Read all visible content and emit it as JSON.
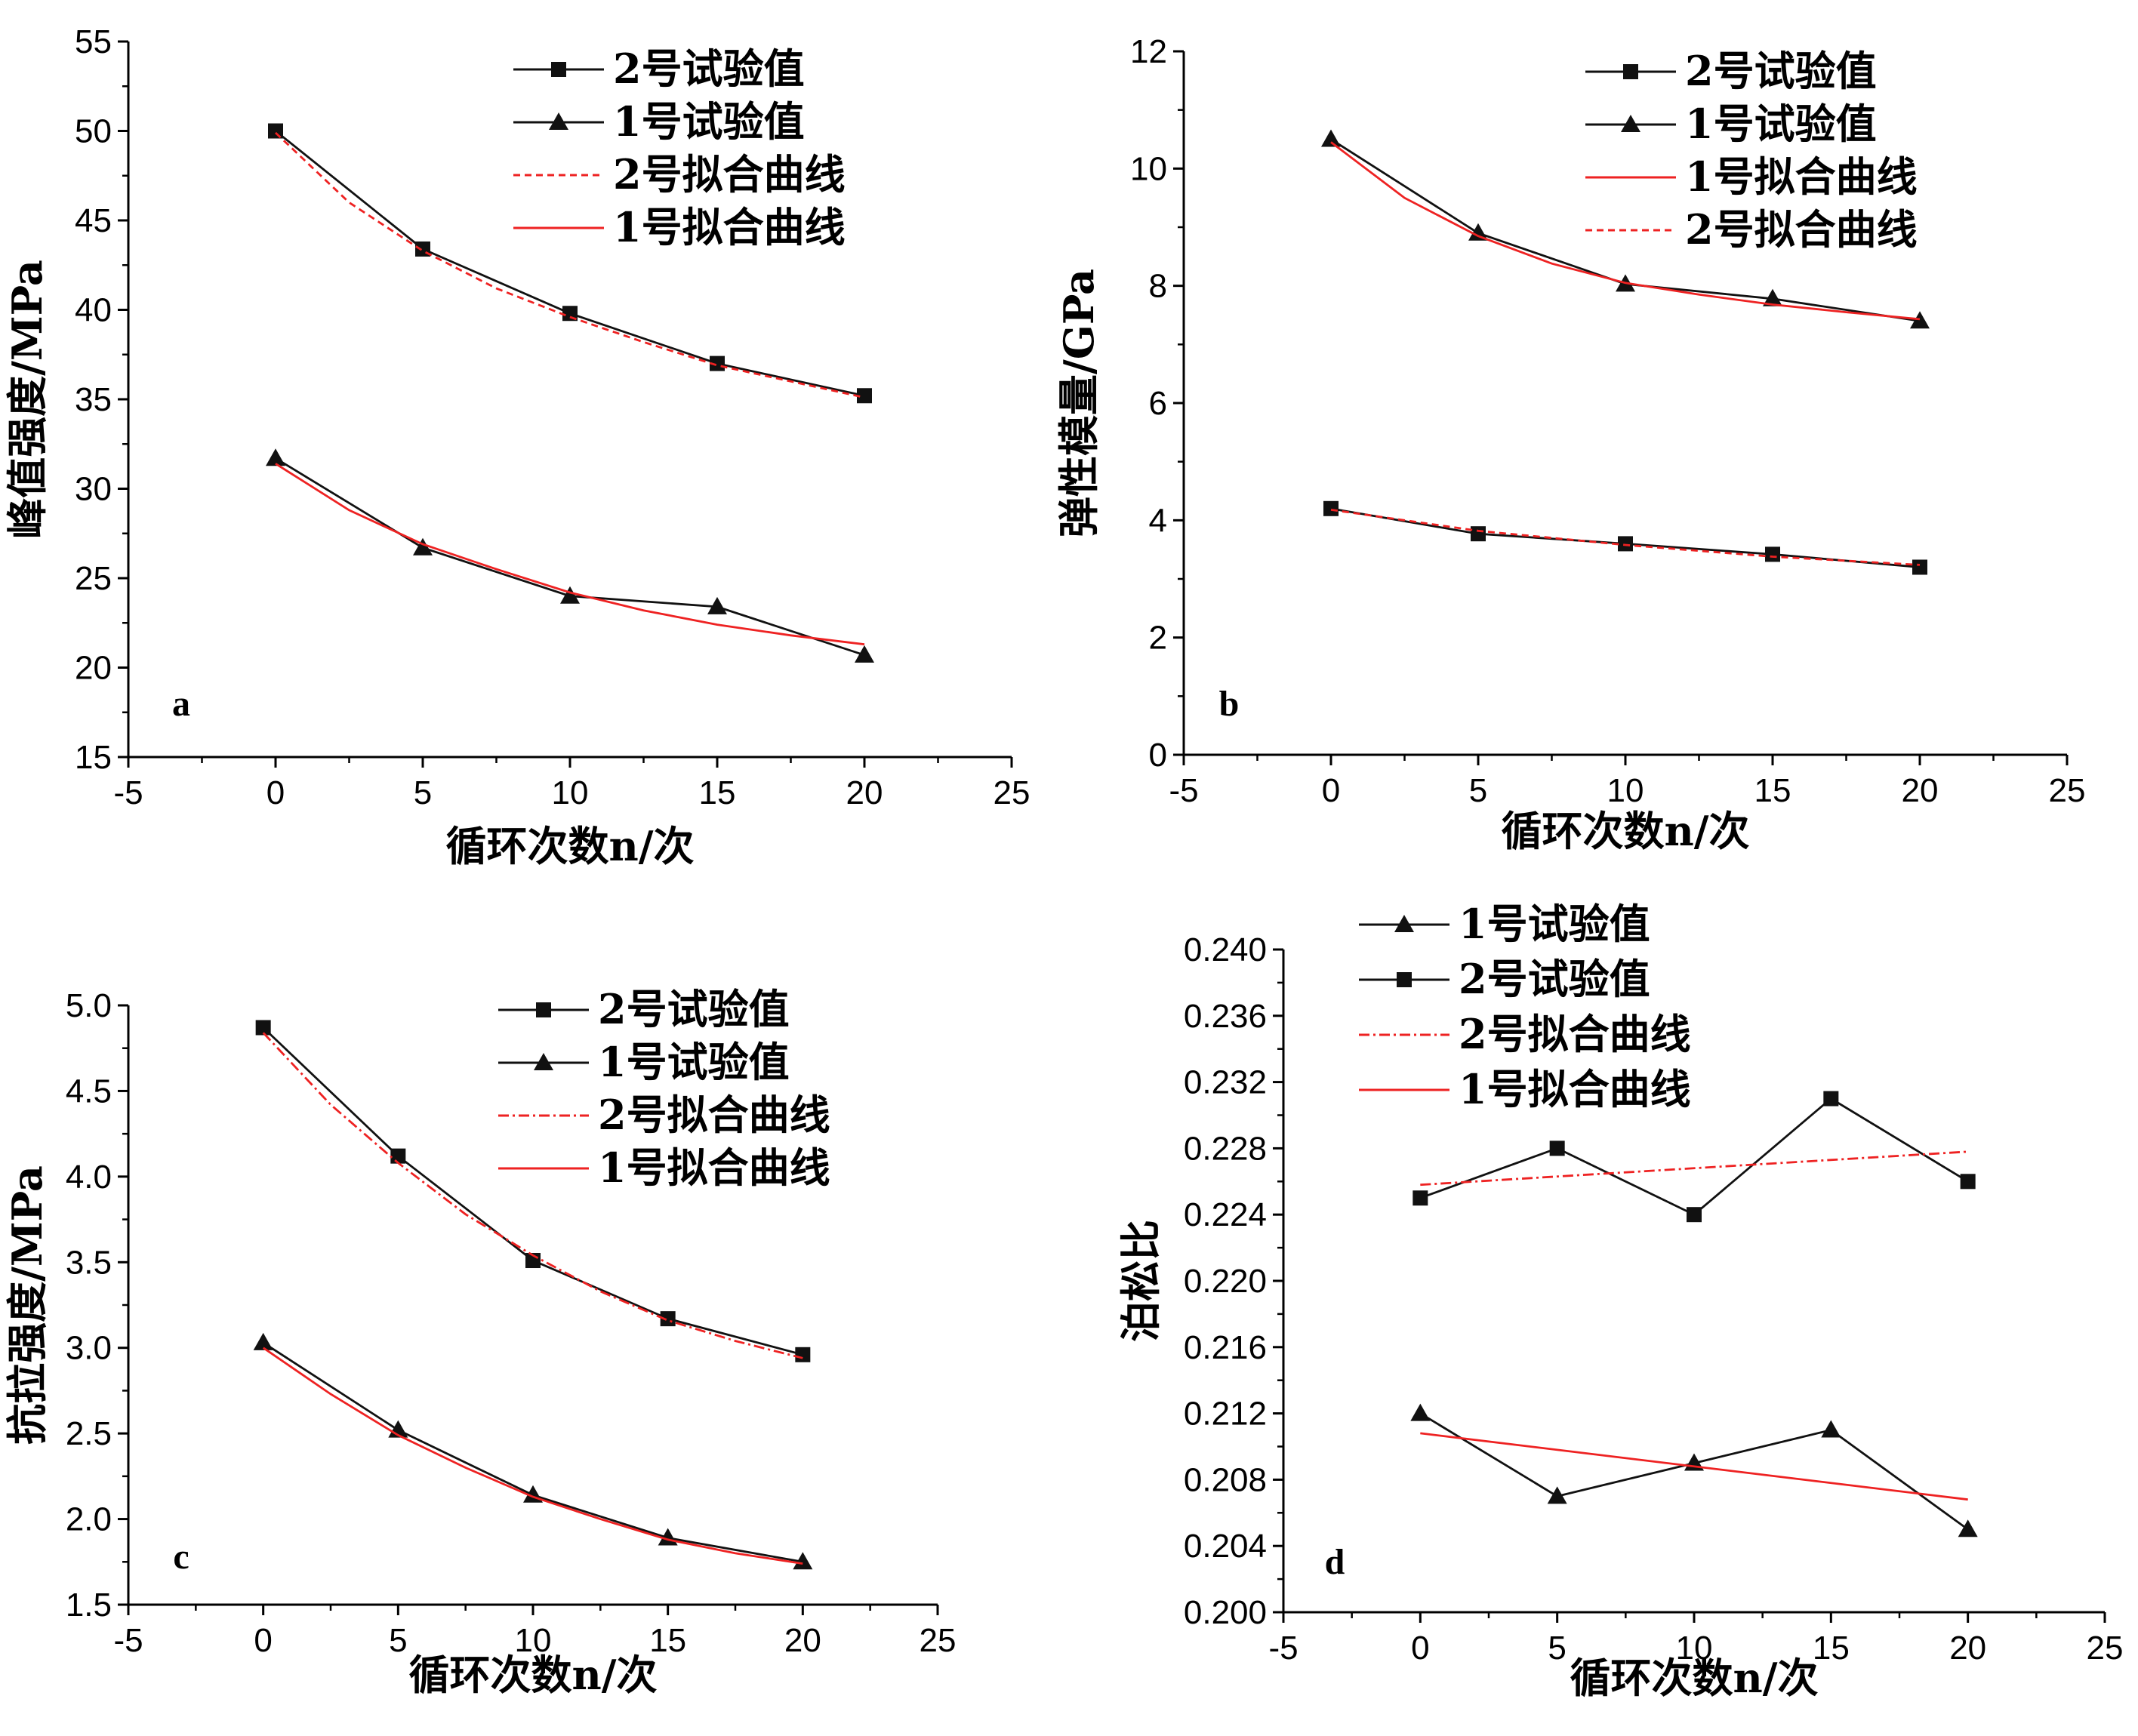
{
  "colors": {
    "experimental": "#111111",
    "fit": "#ee2222"
  },
  "chart_data": [
    {
      "id": "a",
      "type": "line",
      "panel_label": "a",
      "xlabel": "循环次数n/次",
      "ylabel": "峰值强度/MPa",
      "xlim": [
        -5,
        25
      ],
      "ylim": [
        15,
        55
      ],
      "xticks": [
        -5,
        0,
        5,
        10,
        15,
        20,
        25
      ],
      "yticks": [
        15,
        20,
        25,
        30,
        35,
        40,
        45,
        50,
        55
      ],
      "xtick_labels": [
        "-5",
        "0",
        "5",
        "10",
        "15",
        "20",
        "25"
      ],
      "ytick_labels": [
        "15",
        "20",
        "25",
        "30",
        "35",
        "40",
        "45",
        "50",
        "55"
      ],
      "legend_position": "top-right",
      "series": [
        {
          "name": "2号试验值",
          "kind": "experimental",
          "marker": "square",
          "x": [
            0,
            5,
            10,
            15,
            20
          ],
          "y": [
            50.0,
            43.4,
            39.8,
            37.0,
            35.2
          ]
        },
        {
          "name": "1号试验值",
          "kind": "experimental",
          "marker": "triangle",
          "x": [
            0,
            5,
            10,
            15,
            20
          ],
          "y": [
            31.7,
            26.7,
            24.0,
            23.4,
            20.7
          ]
        },
        {
          "name": "2号拟合曲线",
          "kind": "fit",
          "style": "dashed",
          "x": [
            0,
            2.5,
            5,
            7.5,
            10,
            12.5,
            15,
            17.5,
            20
          ],
          "y": [
            49.9,
            46.0,
            43.3,
            41.2,
            39.6,
            38.2,
            36.9,
            36.0,
            35.1
          ]
        },
        {
          "name": "1号拟合曲线",
          "kind": "fit",
          "style": "solid",
          "x": [
            0,
            2.5,
            5,
            7.5,
            10,
            12.5,
            15,
            17.5,
            20
          ],
          "y": [
            31.4,
            28.8,
            26.9,
            25.5,
            24.2,
            23.2,
            22.4,
            21.8,
            21.3
          ]
        }
      ]
    },
    {
      "id": "b",
      "type": "line",
      "panel_label": "b",
      "xlabel": "循环次数n/次",
      "ylabel": "弹性模量/GPa",
      "xlim": [
        -5,
        25
      ],
      "ylim": [
        0,
        12
      ],
      "xticks": [
        -5,
        0,
        5,
        10,
        15,
        20,
        25
      ],
      "yticks": [
        0,
        2,
        4,
        6,
        8,
        10,
        12
      ],
      "xtick_labels": [
        "-5",
        "0",
        "5",
        "10",
        "15",
        "20",
        "25"
      ],
      "ytick_labels": [
        "0",
        "2",
        "4",
        "6",
        "8",
        "10",
        "12"
      ],
      "legend_position": "top-right",
      "series": [
        {
          "name": "2号试验值",
          "kind": "experimental",
          "marker": "square",
          "x": [
            0,
            5,
            10,
            15,
            20
          ],
          "y": [
            4.2,
            3.77,
            3.6,
            3.42,
            3.2
          ]
        },
        {
          "name": "1号试验值",
          "kind": "experimental",
          "marker": "triangle",
          "x": [
            0,
            5,
            10,
            15,
            20
          ],
          "y": [
            10.5,
            8.9,
            8.03,
            7.78,
            7.4
          ]
        },
        {
          "name": "1号拟合曲线",
          "kind": "fit",
          "style": "solid",
          "x": [
            0,
            2.5,
            5,
            7.5,
            10,
            12.5,
            15,
            17.5,
            20
          ],
          "y": [
            10.45,
            9.5,
            8.85,
            8.38,
            8.05,
            7.85,
            7.68,
            7.55,
            7.43
          ]
        },
        {
          "name": "2号拟合曲线",
          "kind": "fit",
          "style": "dashed",
          "x": [
            0,
            5,
            10,
            15,
            20
          ],
          "y": [
            4.18,
            3.82,
            3.58,
            3.38,
            3.24
          ]
        }
      ]
    },
    {
      "id": "c",
      "type": "line",
      "panel_label": "c",
      "xlabel": "循环次数n/次",
      "ylabel": "抗拉强度/MPa",
      "xlim": [
        -5,
        25
      ],
      "ylim": [
        1.5,
        5.0
      ],
      "xticks": [
        -5,
        0,
        5,
        10,
        15,
        20,
        25
      ],
      "yticks": [
        1.5,
        2.0,
        2.5,
        3.0,
        3.5,
        4.0,
        4.5,
        5.0
      ],
      "xtick_labels": [
        "-5",
        "0",
        "5",
        "10",
        "15",
        "20",
        "25"
      ],
      "ytick_labels": [
        "1.5",
        "2.0",
        "2.5",
        "3.0",
        "3.5",
        "4.0",
        "4.5",
        "5.0"
      ],
      "legend_position": "top-right",
      "series": [
        {
          "name": "2号试验值",
          "kind": "experimental",
          "marker": "square",
          "x": [
            0,
            5,
            10,
            15,
            20
          ],
          "y": [
            4.87,
            4.12,
            3.51,
            3.17,
            2.96
          ]
        },
        {
          "name": "1号试验值",
          "kind": "experimental",
          "marker": "triangle",
          "x": [
            0,
            5,
            10,
            15,
            20
          ],
          "y": [
            3.03,
            2.52,
            2.14,
            1.89,
            1.75
          ]
        },
        {
          "name": "2号拟合曲线",
          "kind": "fit",
          "style": "dashdot",
          "x": [
            0,
            2.5,
            5,
            7.5,
            10,
            12.5,
            15,
            17.5,
            20
          ],
          "y": [
            4.84,
            4.42,
            4.08,
            3.78,
            3.54,
            3.33,
            3.16,
            3.04,
            2.94
          ]
        },
        {
          "name": "1号拟合曲线",
          "kind": "fit",
          "style": "solid",
          "x": [
            0,
            2.5,
            5,
            7.5,
            10,
            12.5,
            15,
            17.5,
            20
          ],
          "y": [
            3.0,
            2.73,
            2.49,
            2.3,
            2.13,
            2.0,
            1.88,
            1.8,
            1.74
          ]
        }
      ]
    },
    {
      "id": "d",
      "type": "line",
      "panel_label": "d",
      "xlabel": "循环次数n/次",
      "ylabel": "泊松比",
      "xlim": [
        -5,
        25
      ],
      "ylim": [
        0.2,
        0.24
      ],
      "xticks": [
        -5,
        0,
        5,
        10,
        15,
        20,
        25
      ],
      "yticks": [
        0.2,
        0.204,
        0.208,
        0.212,
        0.216,
        0.22,
        0.224,
        0.228,
        0.232,
        0.236,
        0.24
      ],
      "xtick_labels": [
        "-5",
        "0",
        "5",
        "10",
        "15",
        "20",
        "25"
      ],
      "ytick_labels": [
        "0.200",
        "0.204",
        "0.208",
        "0.212",
        "0.216",
        "0.220",
        "0.224",
        "0.228",
        "0.232",
        "0.236",
        "0.240"
      ],
      "legend_position": "top-left",
      "series": [
        {
          "name": "1号试验值",
          "kind": "experimental",
          "marker": "triangle",
          "x": [
            0,
            5,
            10,
            15,
            20
          ],
          "y": [
            0.212,
            0.207,
            0.209,
            0.211,
            0.205
          ]
        },
        {
          "name": "2号试验值",
          "kind": "experimental",
          "marker": "square",
          "x": [
            0,
            5,
            10,
            15,
            20
          ],
          "y": [
            0.225,
            0.228,
            0.224,
            0.231,
            0.226
          ]
        },
        {
          "name": "2号拟合曲线",
          "kind": "fit",
          "style": "dashdot",
          "x": [
            0,
            20
          ],
          "y": [
            0.2258,
            0.2278
          ]
        },
        {
          "name": "1号拟合曲线",
          "kind": "fit",
          "style": "solid",
          "x": [
            0,
            20
          ],
          "y": [
            0.2108,
            0.2068
          ]
        }
      ]
    }
  ]
}
